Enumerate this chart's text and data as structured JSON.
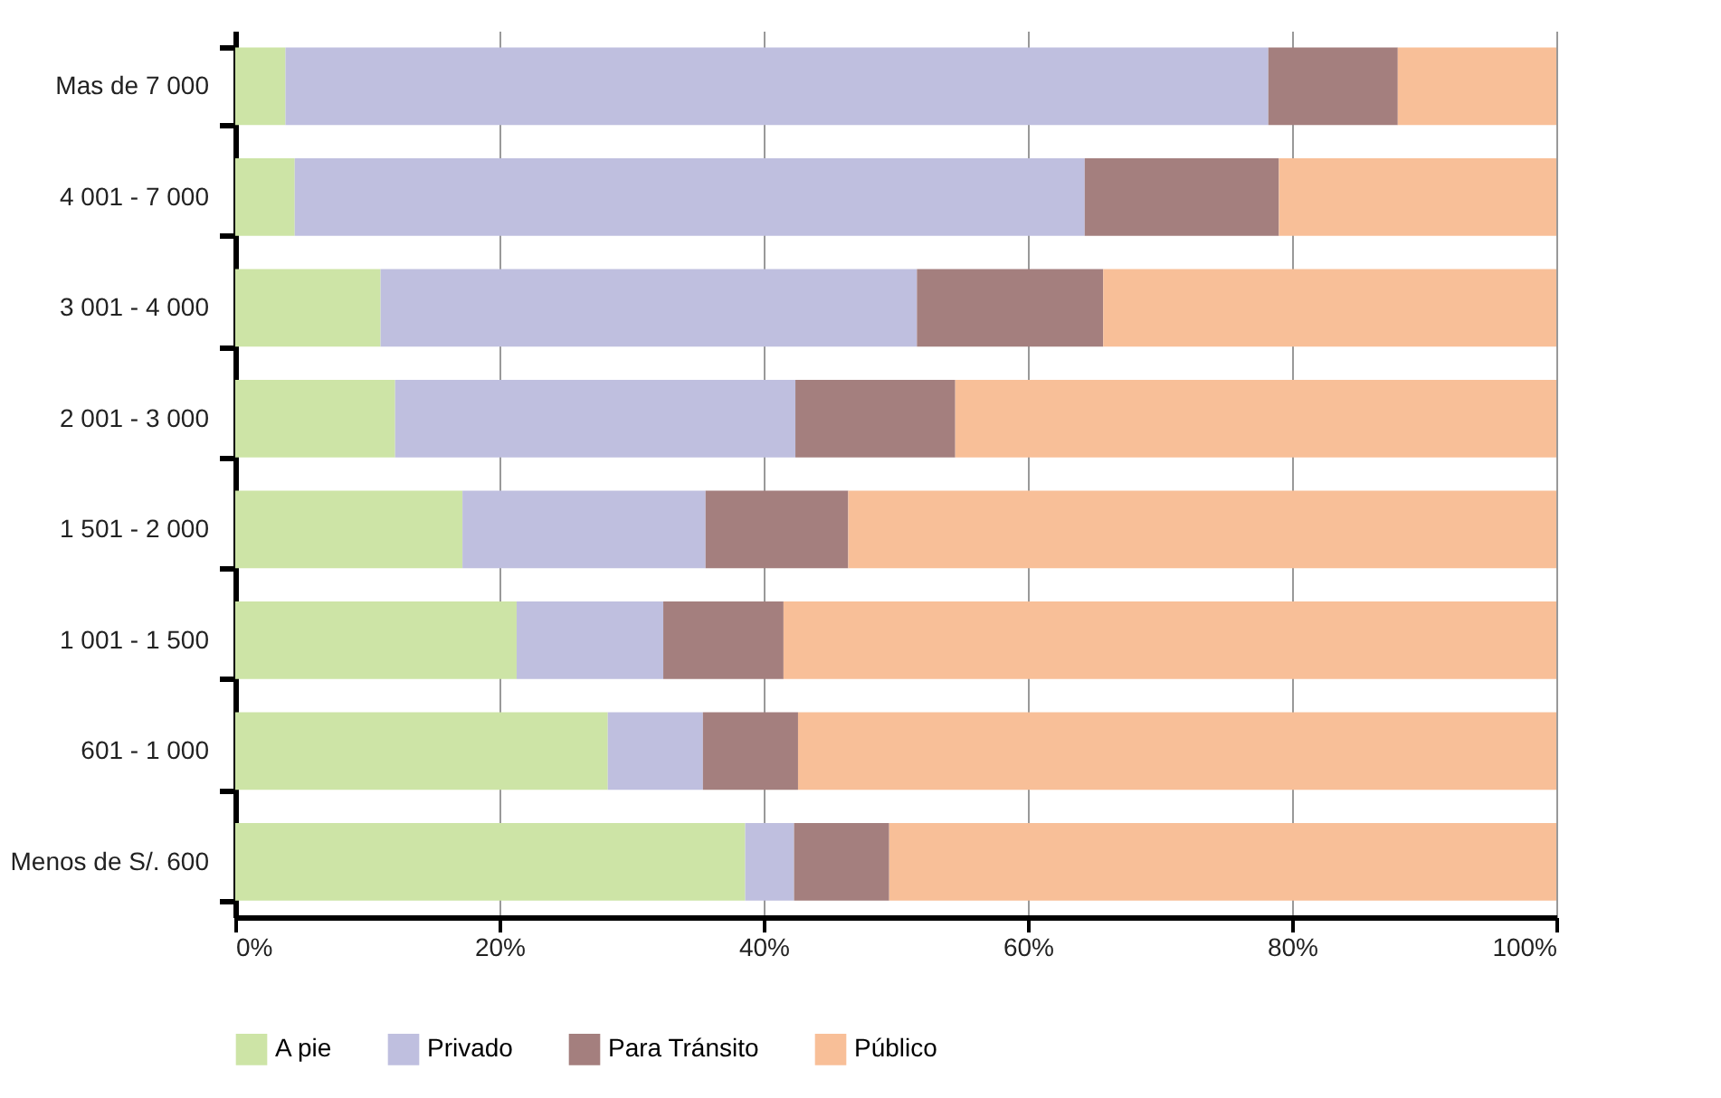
{
  "chart_data": {
    "type": "bar",
    "orientation": "horizontal",
    "stacked": true,
    "categories": [
      "Mas de  7 000",
      "4 001 - 7 000",
      "3 001 - 4 000",
      "2 001 - 3 000",
      "1 501 - 2 000",
      "1 001 - 1 500",
      "601 - 1 000",
      "Menos de S/. 600"
    ],
    "series": [
      {
        "name": "A pie",
        "color": "#cde4a6",
        "values": [
          3.8,
          4.5,
          11.0,
          12.1,
          17.2,
          21.3,
          28.2,
          38.6
        ]
      },
      {
        "name": "Privado",
        "color": "#bfbfdf",
        "values": [
          74.4,
          59.8,
          40.6,
          30.3,
          18.4,
          11.1,
          7.2,
          3.7
        ]
      },
      {
        "name": "Para Tránsito",
        "color": "#a47f7e",
        "values": [
          9.8,
          14.7,
          14.1,
          12.1,
          10.8,
          9.1,
          7.2,
          7.2
        ]
      },
      {
        "name": "Público",
        "color": "#f8bf98",
        "values": [
          12.0,
          21.0,
          34.3,
          45.5,
          53.6,
          58.5,
          57.4,
          50.5
        ]
      }
    ],
    "xlim": [
      0,
      100
    ],
    "xticks": [
      {
        "value": 0,
        "label": "0%"
      },
      {
        "value": 20,
        "label": "20%"
      },
      {
        "value": 40,
        "label": "40%"
      },
      {
        "value": 60,
        "label": "60%"
      },
      {
        "value": 80,
        "label": "80%"
      },
      {
        "value": 100,
        "label": "100%"
      }
    ],
    "grid": "x",
    "legend": "bottom"
  }
}
